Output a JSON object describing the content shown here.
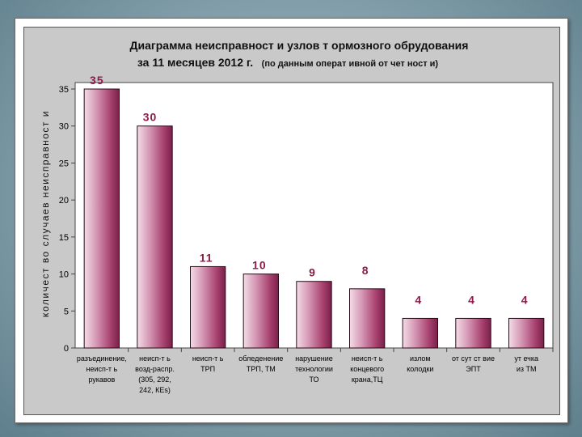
{
  "chart_data": {
    "type": "bar",
    "title_line1": "Диаграмма неисправност и узлов т ормозного обрудования",
    "title_line2_main": "за 11 месяцев 2012 г.",
    "title_line2_note": "(по данным оперaт ивной от чет ност и)",
    "ylabel": "количест во случаев неисправност и",
    "xlabel": "",
    "ylim": [
      0,
      35
    ],
    "yticks": [
      0,
      5,
      10,
      15,
      20,
      25,
      30,
      35
    ],
    "grid": false,
    "bar_color": "#b0507a",
    "categories": [
      [
        "разъединение,",
        "неисп-т ь",
        "рукавов"
      ],
      [
        "неисп-т ь",
        "возд-распр.",
        "(305, 292,",
        "242, КЕs)"
      ],
      [
        "неисп-т ь",
        "ТРП"
      ],
      [
        "обледенение",
        "ТРП, ТМ"
      ],
      [
        "нарушение",
        "технологии",
        "ТО"
      ],
      [
        "неисп-т ь",
        "концевого",
        "крана,ТЦ"
      ],
      [
        "излом",
        "колодки"
      ],
      [
        "от сут ст вие",
        "ЭПТ"
      ],
      [
        "ут ечка",
        "из ТМ"
      ]
    ],
    "values": [
      35,
      30,
      11,
      10,
      9,
      8,
      4,
      4,
      4
    ],
    "data_labels": [
      "35",
      "30",
      "11",
      "10",
      "9",
      "8",
      "4",
      "4",
      "4"
    ]
  }
}
